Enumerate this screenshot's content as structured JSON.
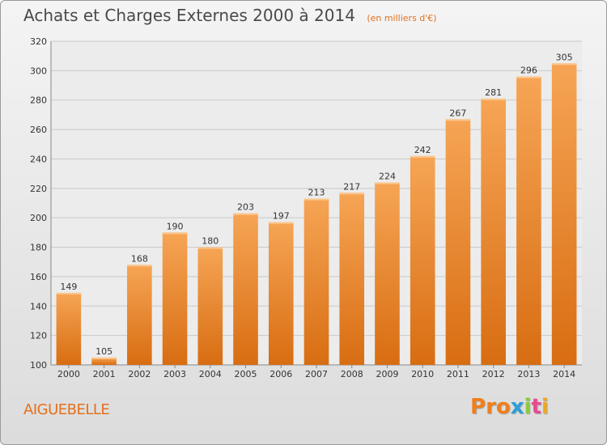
{
  "header": {
    "title": "Achats et Charges Externes 2000 à 2014",
    "unit": "(en milliers d'€)"
  },
  "footer": {
    "place": "AIGUEBELLE",
    "brand_letters": [
      "P",
      "r",
      "o",
      "x",
      "i",
      "t",
      "i"
    ],
    "brand_colors": [
      "#f07f1a",
      "#f07f1a",
      "#f07f1a",
      "#2a9fd8",
      "#8bc83f",
      "#e8498e",
      "#f0a81a"
    ]
  },
  "colors": {
    "bar_top": "#f6a555",
    "bar_bottom": "#d86d12",
    "grid": "#c9c9c9",
    "axis_text": "#333333"
  },
  "chart_data": {
    "type": "bar",
    "title": "Achats et Charges Externes 2000 à 2014",
    "subtitle": "(en milliers d'€)",
    "categories": [
      "2000",
      "2001",
      "2002",
      "2003",
      "2004",
      "2005",
      "2006",
      "2007",
      "2008",
      "2009",
      "2010",
      "2011",
      "2012",
      "2013",
      "2014"
    ],
    "values": [
      149,
      105,
      168,
      190,
      180,
      203,
      197,
      213,
      217,
      224,
      242,
      267,
      281,
      296,
      305
    ],
    "ylim": [
      100,
      320
    ],
    "yticks": [
      100,
      120,
      140,
      160,
      180,
      200,
      220,
      240,
      260,
      280,
      300,
      320
    ],
    "grid": true
  }
}
